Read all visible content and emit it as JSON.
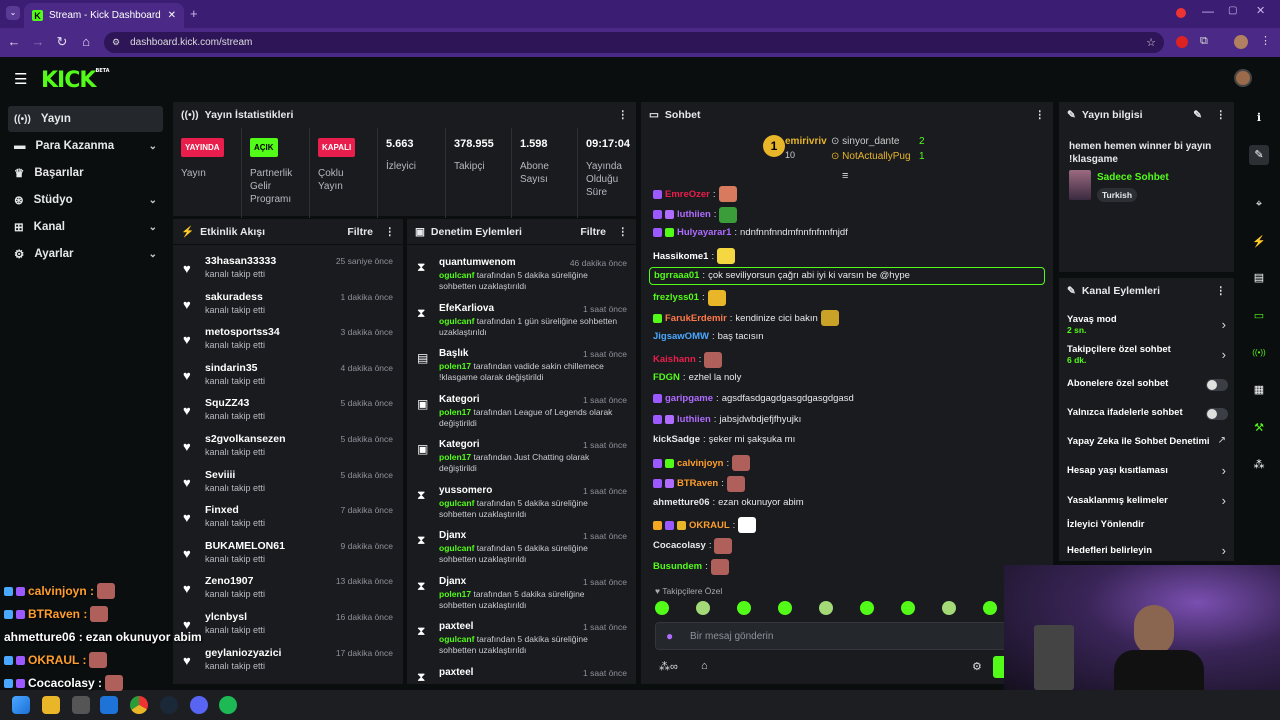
{
  "browser": {
    "tab_title": "Stream - Kick Dashboard",
    "url": "dashboard.kick.com/stream"
  },
  "header": {
    "logo": "KICK",
    "beta": "BETA"
  },
  "sidebar": {
    "items": [
      {
        "label": "Yayın",
        "icon": "broadcast-icon",
        "active": true
      },
      {
        "label": "Para Kazanma",
        "icon": "money-icon",
        "expandable": true
      },
      {
        "label": "Başarılar",
        "icon": "trophy-icon"
      },
      {
        "label": "Stüdyo",
        "icon": "studio-icon",
        "expandable": true
      },
      {
        "label": "Kanal",
        "icon": "channel-icon",
        "expandable": true
      },
      {
        "label": "Ayarlar",
        "icon": "gear-icon",
        "expandable": true
      }
    ]
  },
  "stats": {
    "title": "Yayın İstatistikleri",
    "items": [
      {
        "pill": "YAYINDA",
        "pill_color": "#e91e4c",
        "label": "Yayın"
      },
      {
        "pill": "AÇIK",
        "pill_color": "#53fc18",
        "label": "Partnerlik Gelir Programı"
      },
      {
        "pill": "KAPALI",
        "pill_color": "#e91e4c",
        "label": "Çoklu Yayın"
      },
      {
        "value": "5.663",
        "label": "İzleyici"
      },
      {
        "value": "378.955",
        "label": "Takipçi"
      },
      {
        "value": "1.598",
        "label": "Abone Sayısı"
      },
      {
        "value": "09:17:04",
        "label": "Yayında Olduğu Süre"
      }
    ]
  },
  "activity": {
    "title": "Etkinlik Akışı",
    "filter": "Filtre",
    "items": [
      {
        "name": "33hasan33333",
        "sub": "kanalı takip etti",
        "time": "25 saniye önce"
      },
      {
        "name": "sakuradess",
        "sub": "kanalı takip etti",
        "time": "1 dakika önce"
      },
      {
        "name": "metosportss34",
        "sub": "kanalı takip etti",
        "time": "3 dakika önce"
      },
      {
        "name": "sindarin35",
        "sub": "kanalı takip etti",
        "time": "4 dakika önce"
      },
      {
        "name": "SquZZ43",
        "sub": "kanalı takip etti",
        "time": "5 dakika önce"
      },
      {
        "name": "s2gvolkansezen",
        "sub": "kanalı takip etti",
        "time": "5 dakika önce"
      },
      {
        "name": "Seviiii",
        "sub": "kanalı takip etti",
        "time": "5 dakika önce"
      },
      {
        "name": "Finxed",
        "sub": "kanalı takip etti",
        "time": "7 dakika önce"
      },
      {
        "name": "BUKAMELON61",
        "sub": "kanalı takip etti",
        "time": "9 dakika önce"
      },
      {
        "name": "Zeno1907",
        "sub": "kanalı takip etti",
        "time": "13 dakika önce"
      },
      {
        "name": "ylcnbysl",
        "sub": "kanalı takip etti",
        "time": "16 dakika önce"
      },
      {
        "name": "geylaniozyazici",
        "sub": "kanalı takip etti",
        "time": "17 dakika önce"
      }
    ]
  },
  "moderation": {
    "title": "Denetim Eylemleri",
    "filter": "Filtre",
    "items": [
      {
        "name": "quantumwenom",
        "time": "46 dakika önce",
        "icon": "hourglass-icon",
        "actor": "ogulcanf",
        "text": " tarafından 5 dakika süreliğine sohbetten uzaklaştırıldı",
        "h": 46
      },
      {
        "name": "EfeKarliova",
        "time": "1 saat önce",
        "icon": "hourglass-icon",
        "actor": "ogulcanf",
        "text": " tarafından 1 gün süreliğine sohbetten uzaklaştırıldı",
        "h": 46
      },
      {
        "name": "Başlık",
        "time": "1 saat önce",
        "icon": "title-icon",
        "actor": "polen17",
        "text": " tarafından vadide sakin chillemece !klasgame olarak değiştirildi",
        "h": 46
      },
      {
        "name": "Kategori",
        "time": "1 saat önce",
        "icon": "category-icon",
        "actor": "polen17",
        "text": " tarafından League of Legends olarak değiştirildi",
        "h": 46
      },
      {
        "name": "Kategori",
        "time": "1 saat önce",
        "icon": "category-icon",
        "actor": "polen17",
        "text": " tarafından Just Chatting olarak değiştirildi",
        "h": 46
      },
      {
        "name": "yussomero",
        "time": "1 saat önce",
        "icon": "hourglass-icon",
        "actor": "ogulcanf",
        "text": " tarafından 5 dakika süreliğine sohbetten uzaklaştırıldı",
        "h": 46
      },
      {
        "name": "Djanx",
        "time": "1 saat önce",
        "icon": "hourglass-icon",
        "actor": "ogulcanf",
        "text": " tarafından 5 dakika süreliğine sohbetten uzaklaştırıldı",
        "h": 46
      },
      {
        "name": "Djanx",
        "time": "1 saat önce",
        "icon": "hourglass-icon",
        "actor": "polen17",
        "text": " tarafından 5 dakika süreliğine sohbetten uzaklaştırıldı",
        "h": 46
      },
      {
        "name": "paxteel",
        "time": "1 saat önce",
        "icon": "hourglass-icon",
        "actor": "ogulcanf",
        "text": " tarafından 5 dakika süreliğine sohbetten uzaklaştırıldı",
        "h": 46
      },
      {
        "name": "paxteel",
        "time": "1 saat önce",
        "icon": "hourglass-icon",
        "actor": "",
        "text": "",
        "h": 20
      }
    ]
  },
  "chat": {
    "title": "Sohbet",
    "pinned": {
      "rank": "1",
      "user1": "emirivriv",
      "count1": "10",
      "user2": "sinyor_dante",
      "count2": "2",
      "user3": "NotActuallyPug",
      "count3": "1"
    },
    "messages": [
      {
        "user": "EmreOzer",
        "color": "#e91e4c",
        "text": "",
        "emote": "#d77a5e",
        "badges": [
          "#9b59ff"
        ]
      },
      {
        "user": "luthiien",
        "color": "#b06cff",
        "text": "",
        "emote": "#3a9d3a",
        "badges": [
          "#9b59ff",
          "#b06cff"
        ]
      },
      {
        "user": "Hulyayarar1",
        "color": "#b06cff",
        "text": " ndnfnnfnndmfnnfnfnnfnjdf",
        "emote": "",
        "badges": [
          "#9b59ff",
          "#53fc18"
        ]
      },
      {
        "user": "Hassikome1",
        "color": "#ffffff",
        "text": "",
        "emote": "#f5d742",
        "badges": []
      },
      {
        "user": "bgrraaa01",
        "color": "#53fc18",
        "text": " çok seviliyorsun çağrı abi iyi ki varsın be @hype",
        "emote": "",
        "badges": [],
        "highlight": true
      },
      {
        "user": "frezlyss01",
        "color": "#53fc18",
        "text": "",
        "emote": "#e8b628",
        "badges": []
      },
      {
        "user": "FarukErdemir",
        "color": "#ff7a4a",
        "text": " kendinize cici bakın",
        "emote": "#c9a227",
        "badges": [
          "#53fc18"
        ]
      },
      {
        "user": "JigsawOMW",
        "color": "#4aa8ff",
        "text": " baş tacısın",
        "emote": "",
        "badges": []
      },
      {
        "user": "Kaishann",
        "color": "#e91e4c",
        "text": "",
        "emote": "#b0605a",
        "badges": []
      },
      {
        "user": "FDGN",
        "color": "#53fc18",
        "text": " ezhel la noly",
        "emote": "",
        "badges": []
      },
      {
        "user": "garipgame",
        "color": "#b06cff",
        "text": " agsdfasdgagdgasgdgasgdgasd",
        "emote": "",
        "badges": [
          "#9b59ff"
        ]
      },
      {
        "user": "luthiien",
        "color": "#b06cff",
        "text": " jabsjdwbdjefjfhyujkı",
        "emote": "",
        "badges": [
          "#9b59ff",
          "#b06cff"
        ]
      },
      {
        "user": "kickSadge",
        "color": "#e6e8ea",
        "text": " şeker mi şakşuka mı",
        "emote": "",
        "badges": []
      },
      {
        "user": "calvinjoyn",
        "color": "#ff9e2c",
        "text": "",
        "emote": "#b0605a",
        "badges": [
          "#9b59ff",
          "#53fc18"
        ]
      },
      {
        "user": "BTRaven",
        "color": "#ff9e2c",
        "text": "",
        "emote": "#b0605a",
        "badges": [
          "#9b59ff",
          "#b06cff"
        ]
      },
      {
        "user": "ahmetture06",
        "color": "#e6e8ea",
        "text": " ezan okunuyor abim",
        "emote": "",
        "badges": []
      },
      {
        "user": "OKRAUL",
        "color": "#ff9e2c",
        "text": "",
        "emote": "#ffffff",
        "badges": [
          "#f5a623",
          "#9b59ff",
          "#e8b628"
        ]
      },
      {
        "user": "Cocacolasy",
        "color": "#e6e8ea",
        "text": "",
        "emote": "#b0605a",
        "badges": []
      },
      {
        "user": "Busundem",
        "color": "#53fc18",
        "text": "",
        "emote": "#b0605a",
        "badges": []
      }
    ],
    "followers_only_label": "Takipçilere Özel",
    "input_placeholder": "Bir mesaj gönderin"
  },
  "stream_info": {
    "title": "Yayın bilgisi",
    "stream_title": "hemen hemen winner bi yayın !klasgame",
    "category": "Sadece Sohbet",
    "tag": "Turkish"
  },
  "channel_actions": {
    "title": "Kanal Eylemleri",
    "items": [
      {
        "label": "Yavaş mod",
        "sub": "2 sn.",
        "control": "arrow"
      },
      {
        "label": "Takipçilere özel sohbet",
        "sub": "6 dk.",
        "control": "arrow"
      },
      {
        "label": "Abonelere özel sohbet",
        "sub": "",
        "control": "toggle"
      },
      {
        "label": "Yalnızca ifadelerle sohbet",
        "sub": "",
        "control": "toggle"
      },
      {
        "label": "Yapay Zeka ile Sohbet Denetimi",
        "sub": "",
        "control": "external"
      },
      {
        "label": "Hesap yaşı kısıtlaması",
        "sub": "",
        "control": "arrow"
      },
      {
        "label": "Yasaklanmış kelimeler",
        "sub": "",
        "control": "arrow"
      },
      {
        "label": "İzleyici Yönlendir",
        "sub": "",
        "control": "none"
      },
      {
        "label": "Hedefleri belirleyin",
        "sub": "",
        "control": "arrow"
      }
    ]
  },
  "overlay_chat": [
    {
      "user": "calvinjoyn",
      "color": "#ff9e2c",
      "text": ""
    },
    {
      "user": "BTRaven",
      "color": "#ff9e2c",
      "text": ""
    },
    {
      "user": "ahmetture06",
      "color": "#ffffff",
      "text": " ezan okunuyor abim"
    },
    {
      "user": "OKRAUL",
      "color": "#ff9e2c",
      "text": ""
    },
    {
      "user": "Cocacolasy",
      "color": "#ffffff",
      "text": ""
    }
  ]
}
